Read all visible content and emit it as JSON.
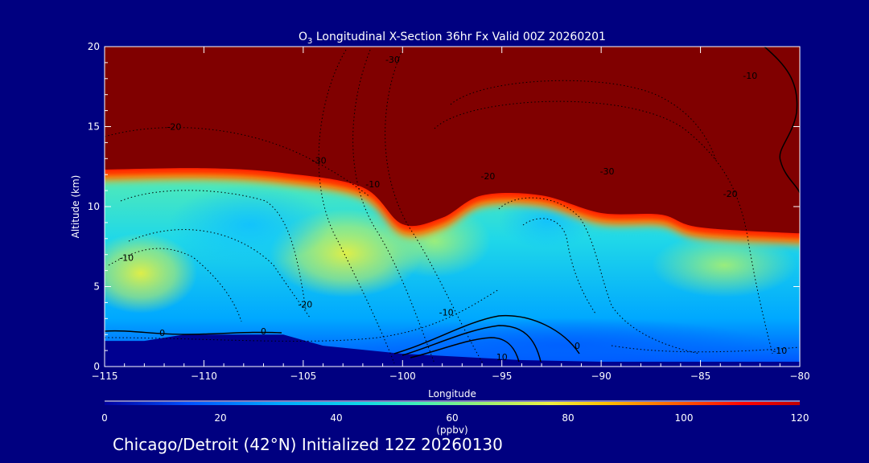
{
  "chart_data": {
    "type": "heatmap",
    "title": "O3 Longitudinal X-Section 36hr  Fx Valid 00Z 20260201",
    "title_parts": {
      "main": "O",
      "subscript": "3",
      "rest": " Longitudinal X-Section 36hr  Fx Valid 00Z 20260201"
    },
    "xlabel": "Longitude",
    "ylabel": "Altitude (km)",
    "xlim": [
      -115,
      -80
    ],
    "ylim": [
      0,
      20
    ],
    "x_ticks": [
      -115,
      -110,
      -105,
      -100,
      -95,
      -90,
      -85,
      -80
    ],
    "x_tick_labels": [
      "−115",
      "−110",
      "−105",
      "−100",
      "−95",
      "−90",
      "−85",
      "−80"
    ],
    "y_ticks": [
      0,
      5,
      10,
      15,
      20
    ],
    "y_tick_labels": [
      "0",
      "5",
      "10",
      "15",
      "20"
    ],
    "colorbar": {
      "label": "(ppbv)",
      "range": [
        0,
        120
      ],
      "ticks": [
        0,
        20,
        40,
        60,
        80,
        100,
        120
      ],
      "tick_labels": [
        "0",
        "20",
        "40",
        "60",
        "80",
        "100",
        "120"
      ],
      "colors": [
        "#0000a0",
        "#0050ff",
        "#00b4ff",
        "#20e0d0",
        "#60f0a0",
        "#c8f060",
        "#ffe000",
        "#ff8000",
        "#ff2000",
        "#800000"
      ]
    },
    "tropopause_km": [
      {
        "lon": -115,
        "alt": 12.3
      },
      {
        "lon": -110,
        "alt": 12.4
      },
      {
        "lon": -106,
        "alt": 12.1
      },
      {
        "lon": -102,
        "alt": 11.2
      },
      {
        "lon": -100,
        "alt": 8.9
      },
      {
        "lon": -98,
        "alt": 9.3
      },
      {
        "lon": -96,
        "alt": 10.7
      },
      {
        "lon": -93,
        "alt": 10.7
      },
      {
        "lon": -90,
        "alt": 9.6
      },
      {
        "lon": -87,
        "alt": 9.5
      },
      {
        "lon": -85,
        "alt": 8.7
      },
      {
        "lon": -80,
        "alt": 8.3
      }
    ],
    "terrain_km": [
      {
        "lon": -115,
        "alt": 1.6
      },
      {
        "lon": -113,
        "alt": 1.6
      },
      {
        "lon": -111,
        "alt": 2.0
      },
      {
        "lon": -108,
        "alt": 2.0
      },
      {
        "lon": -106,
        "alt": 2.0
      },
      {
        "lon": -104,
        "alt": 1.3
      },
      {
        "lon": -100,
        "alt": 0.8
      },
      {
        "lon": -97,
        "alt": 0.6
      },
      {
        "lon": -94,
        "alt": 0.4
      },
      {
        "lon": -90,
        "alt": 0.3
      },
      {
        "lon": -85,
        "alt": 0.3
      },
      {
        "lon": -80,
        "alt": 0.3
      }
    ],
    "contour_labels": [
      {
        "text": "-30",
        "lon": -100.5,
        "alt": 19.0
      },
      {
        "text": "-10",
        "lon": -82.5,
        "alt": 18.0
      },
      {
        "text": "-20",
        "lon": -111.5,
        "alt": 14.8
      },
      {
        "text": "-30",
        "lon": -104.2,
        "alt": 12.7
      },
      {
        "text": "-20",
        "lon": -95.7,
        "alt": 11.7
      },
      {
        "text": "-30",
        "lon": -89.7,
        "alt": 12.0
      },
      {
        "text": "-20",
        "lon": -83.5,
        "alt": 10.6
      },
      {
        "text": "-10",
        "lon": -101.5,
        "alt": 11.2
      },
      {
        "text": "-10",
        "lon": -113.9,
        "alt": 6.6
      },
      {
        "text": "-20",
        "lon": -104.9,
        "alt": 3.7
      },
      {
        "text": "-10",
        "lon": -97.8,
        "alt": 3.2
      },
      {
        "text": "0",
        "lon": -112.1,
        "alt": 1.9
      },
      {
        "text": "0",
        "lon": -107.0,
        "alt": 2.0
      },
      {
        "text": "0",
        "lon": -91.2,
        "alt": 1.1
      },
      {
        "text": "10",
        "lon": -95.0,
        "alt": 0.4
      },
      {
        "text": "-10",
        "lon": -81.0,
        "alt": 0.8
      }
    ]
  },
  "footer_text": "Chicago/Detroit (42°N) Initialized 12Z 20260130"
}
